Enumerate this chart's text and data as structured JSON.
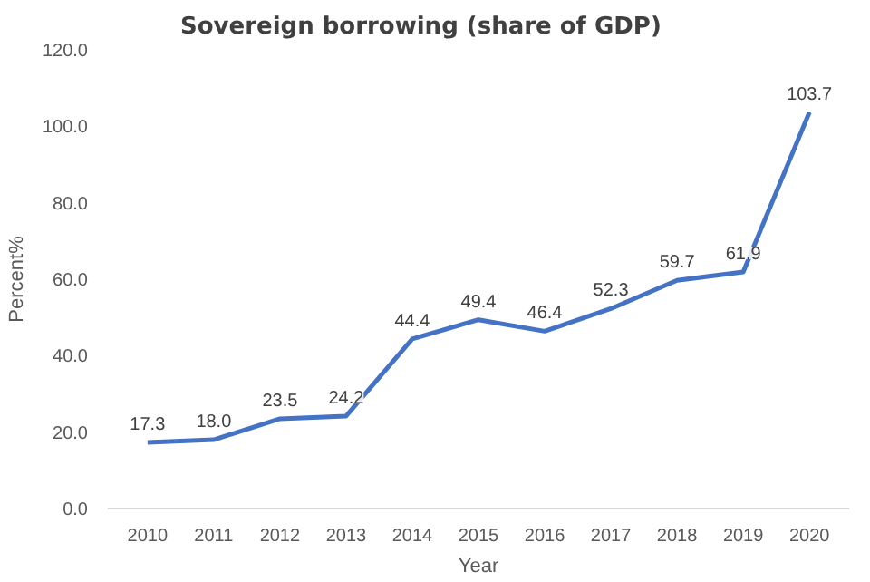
{
  "chart_data": {
    "type": "line",
    "title": "Sovereign borrowing (share of GDP)",
    "xlabel": "Year",
    "ylabel": "Percent%",
    "categories": [
      "2010",
      "2011",
      "2012",
      "2013",
      "2014",
      "2015",
      "2016",
      "2017",
      "2018",
      "2019",
      "2020"
    ],
    "series": [
      {
        "color": "#4472c4",
        "values": [
          17.3,
          18.0,
          23.5,
          24.2,
          44.4,
          49.4,
          46.4,
          52.3,
          59.7,
          61.9,
          103.7
        ],
        "value_labels": [
          "17.3",
          "18.0",
          "23.5",
          "24.2",
          "44.4",
          "49.4",
          "46.4",
          "52.3",
          "59.7",
          "61.9",
          "103.7"
        ]
      }
    ],
    "ylim": [
      0,
      120
    ],
    "yticks": [
      {
        "value": 0,
        "label": "0.0"
      },
      {
        "value": 20,
        "label": "20.0"
      },
      {
        "value": 40,
        "label": "40.0"
      },
      {
        "value": 60,
        "label": "60.0"
      },
      {
        "value": 80,
        "label": "80.0"
      },
      {
        "value": 100,
        "label": "100.0"
      },
      {
        "value": 120,
        "label": "120.0"
      }
    ],
    "grid": false,
    "marker": "none",
    "line_style": "solid"
  }
}
